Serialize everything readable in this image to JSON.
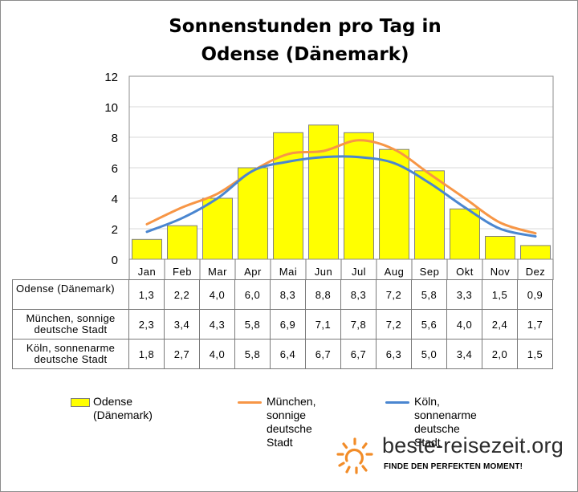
{
  "chart_data": {
    "type": "bar",
    "title": "Sonnenstunden pro Tag in Odense (Dänemark)",
    "categories": [
      "Jan",
      "Feb",
      "Mar",
      "Apr",
      "Mai",
      "Jun",
      "Jul",
      "Aug",
      "Sep",
      "Okt",
      "Nov",
      "Dez"
    ],
    "ylim": [
      0,
      12
    ],
    "yticks": [
      "0",
      "2",
      "4",
      "6",
      "8",
      "10",
      "12"
    ],
    "grid": true,
    "legend_position": "bottom",
    "series": [
      {
        "name": "Odense (Dänemark)",
        "kind": "bar",
        "color": "#ffff00",
        "values": [
          1.3,
          2.2,
          4.0,
          6.0,
          8.3,
          8.8,
          8.3,
          7.2,
          5.8,
          3.3,
          1.5,
          0.9
        ],
        "labels": [
          "1,3",
          "2,2",
          "4,0",
          "6,0",
          "8,3",
          "8,8",
          "8,3",
          "7,2",
          "5,8",
          "3,3",
          "1,5",
          "0,9"
        ]
      },
      {
        "name": "München, sonnige deutsche Stadt",
        "kind": "line",
        "color": "#f79646",
        "values": [
          2.3,
          3.4,
          4.3,
          5.8,
          6.9,
          7.1,
          7.8,
          7.2,
          5.6,
          4.0,
          2.4,
          1.7
        ],
        "labels": [
          "2,3",
          "3,4",
          "4,3",
          "5,8",
          "6,9",
          "7,1",
          "7,8",
          "7,2",
          "5,6",
          "4,0",
          "2,4",
          "1,7"
        ]
      },
      {
        "name": "Köln, sonnenarme deutsche Stadt",
        "kind": "line",
        "color": "#4a86d0",
        "values": [
          1.8,
          2.7,
          4.0,
          5.8,
          6.4,
          6.7,
          6.7,
          6.3,
          5.0,
          3.4,
          2.0,
          1.5
        ],
        "labels": [
          "1,8",
          "2,7",
          "4,0",
          "5,8",
          "6,4",
          "6,7",
          "6,7",
          "6,3",
          "5,0",
          "3,4",
          "2,0",
          "1,5"
        ]
      }
    ]
  },
  "table_rows": [
    {
      "label": "Odense (Dänemark)"
    },
    {
      "label": "München, sonnige\ndeutsche Stadt"
    },
    {
      "label": "Köln, sonnenarme\ndeutsche Stadt"
    }
  ],
  "legend": {
    "odense": "Odense (Dänemark)",
    "muenchen": "München, sonnige\ndeutsche Stadt",
    "koeln": "Köln, sonnenarme\ndeutsche Stadt"
  },
  "brand": {
    "name": "beste-reisezeit.org",
    "tagline": "FINDE DEN PERFEKTEN MOMENT!",
    "icon": "sun-icon",
    "icon_color": "#f28c28"
  }
}
